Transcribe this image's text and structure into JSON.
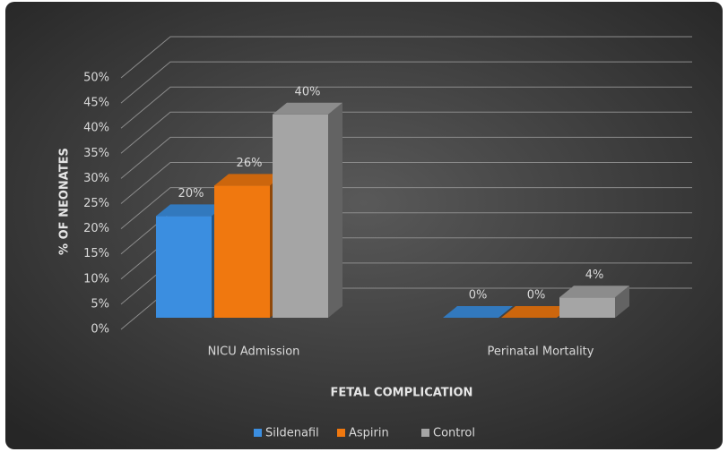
{
  "chart_data": {
    "type": "bar3d",
    "categories": [
      "NICU Admission",
      "Perinatal Mortality"
    ],
    "series": [
      {
        "name": "Sildenafil",
        "color": "#3b8ee0",
        "values": [
          20,
          0
        ],
        "value_labels": [
          "20%",
          "0%"
        ]
      },
      {
        "name": "Aspirin",
        "color": "#f0780f",
        "values": [
          26,
          0
        ],
        "value_labels": [
          "26%",
          "0%"
        ]
      },
      {
        "name": "Control",
        "color": "#a5a5a5",
        "values": [
          40,
          4
        ],
        "value_labels": [
          "40%",
          "4%"
        ]
      }
    ],
    "ylim": [
      0,
      50
    ],
    "yticks": [
      {
        "value": 0,
        "label": "0%"
      },
      {
        "value": 5,
        "label": "5%"
      },
      {
        "value": 10,
        "label": "10%"
      },
      {
        "value": 15,
        "label": "15%"
      },
      {
        "value": 20,
        "label": "20%"
      },
      {
        "value": 25,
        "label": "25%"
      },
      {
        "value": 30,
        "label": "30%"
      },
      {
        "value": 35,
        "label": "35%"
      },
      {
        "value": 40,
        "label": "40%"
      },
      {
        "value": 45,
        "label": "45%"
      },
      {
        "value": 50,
        "label": "50%"
      }
    ],
    "x_label": "FETAL COMPLICATION",
    "y_label": "% OF NEONATES",
    "grid": true,
    "legend": "bottom"
  }
}
